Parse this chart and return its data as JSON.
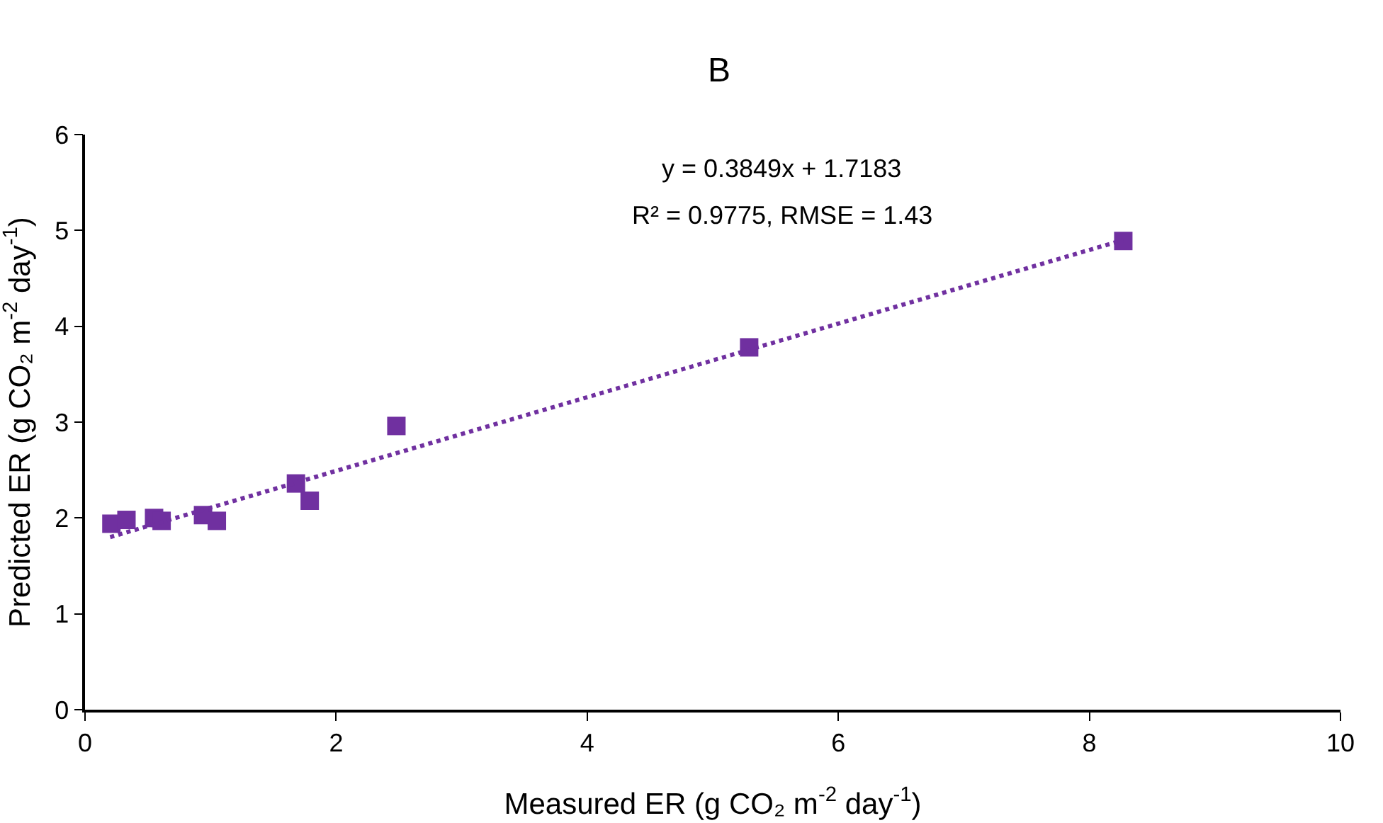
{
  "chart_data": {
    "type": "scatter",
    "title": "B",
    "xlabel": "Measured ER (g CO₂ m$^{-2}$ day$^{-1}$)",
    "ylabel": "Predicted ER (g CO₂ m$^{-2}$ day$^{-1}$)",
    "annotations": [
      "y = 0.3849x + 1.7183",
      "R² = 0.9775, RMSE = 1.43"
    ],
    "series": [
      {
        "color": "#7030a0",
        "marker": "square",
        "x": [
          0.21,
          0.33,
          0.55,
          0.61,
          0.94,
          1.05,
          1.68,
          1.79,
          2.48,
          5.29,
          8.27
        ],
        "values": [
          1.94,
          1.98,
          2.0,
          1.97,
          2.03,
          1.97,
          2.36,
          2.18,
          2.96,
          3.78,
          4.89
        ]
      },
      {
        "type": "line",
        "color": "#7030a0",
        "line_style": "dotted",
        "x": [
          0.2,
          8.27
        ],
        "values": [
          1.8,
          4.9
        ]
      }
    ],
    "xlim": [
      0,
      10
    ],
    "xticks": [
      0,
      2,
      4,
      6,
      8,
      10
    ],
    "ylim": [
      0,
      6
    ],
    "yticks": [
      0,
      1,
      2,
      3,
      4,
      5,
      6
    ],
    "grid": false
  }
}
